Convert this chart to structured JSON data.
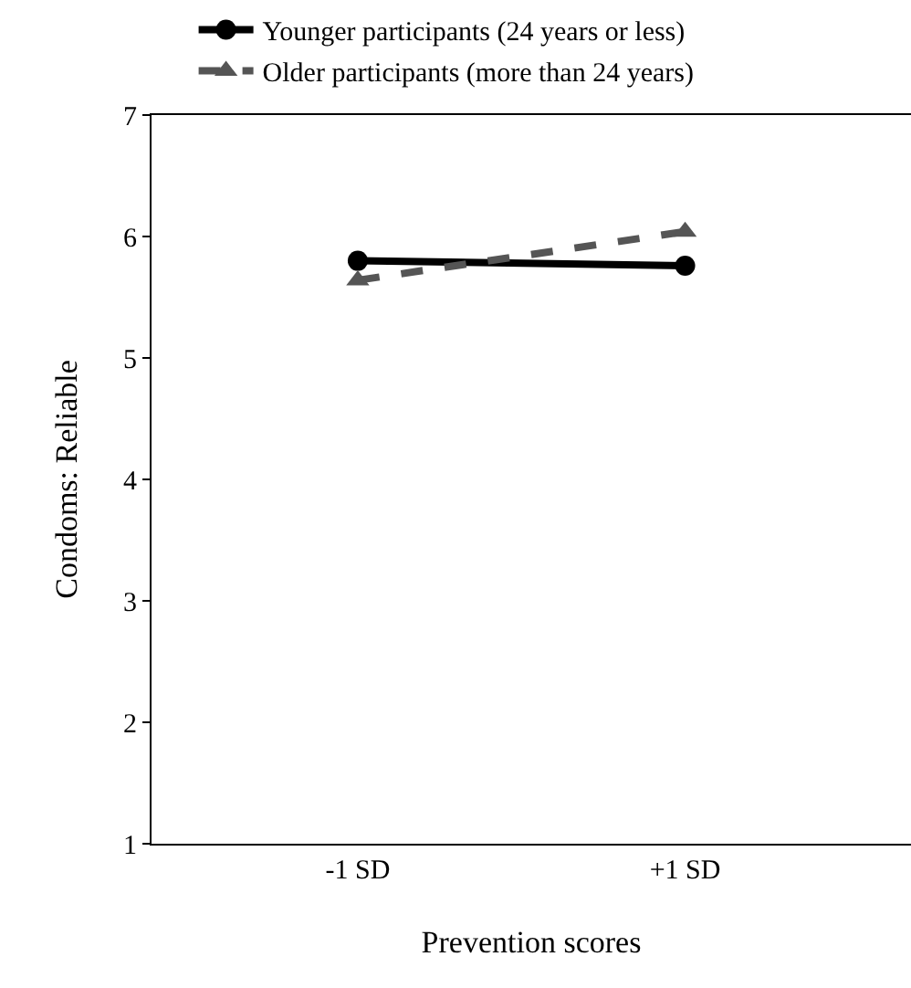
{
  "chart_data": {
    "type": "line",
    "xlabel": "Prevention scores",
    "ylabel": "Condoms: Reliable",
    "categories": [
      "-1 SD",
      "+1 SD"
    ],
    "series": [
      {
        "name": "Younger participants (24 years or less)",
        "color": "#000000",
        "values": [
          5.8,
          5.76
        ],
        "marker": "circle",
        "line_style": "solid"
      },
      {
        "name": "Older participants (more than 24 years)",
        "color": "#555555",
        "values": [
          5.64,
          6.04
        ],
        "marker": "triangle",
        "line_style": "dashed"
      }
    ],
    "ylim": [
      1,
      7
    ],
    "yticks": [
      1,
      2,
      3,
      4,
      5,
      6,
      7
    ],
    "grid": false,
    "legend": "top"
  }
}
